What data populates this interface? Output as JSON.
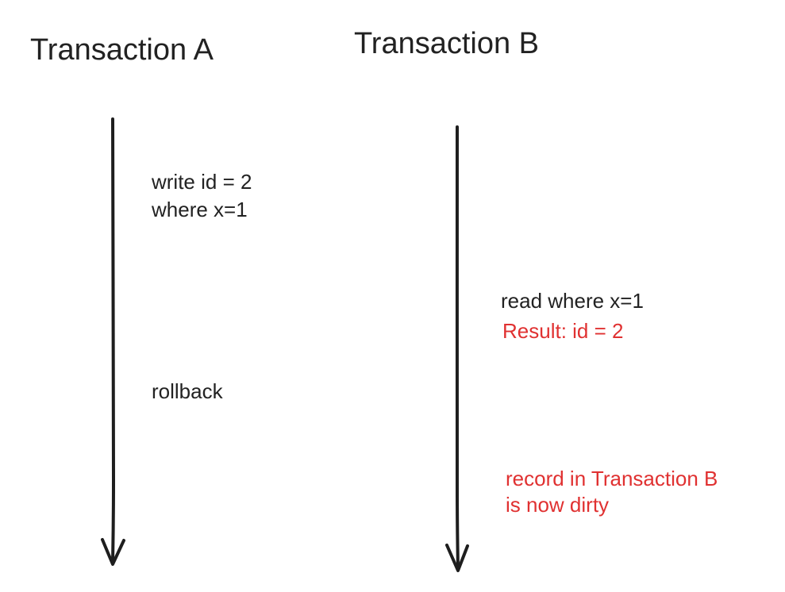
{
  "transactions": [
    {
      "title": "Transaction A",
      "events": {
        "write_line1": "write id = 2",
        "write_line2": "where x=1",
        "rollback": "rollback"
      }
    },
    {
      "title": "Transaction B",
      "events": {
        "read": "read where x=1",
        "result": "Result: id = 2",
        "dirty_line1": "record in Transaction B",
        "dirty_line2": "is now dirty"
      }
    }
  ],
  "colors": {
    "text": "#222222",
    "highlight": "#e03131",
    "arrow": "#1e1e1e"
  },
  "icons": [
    "timeline-arrow-down-icon"
  ]
}
